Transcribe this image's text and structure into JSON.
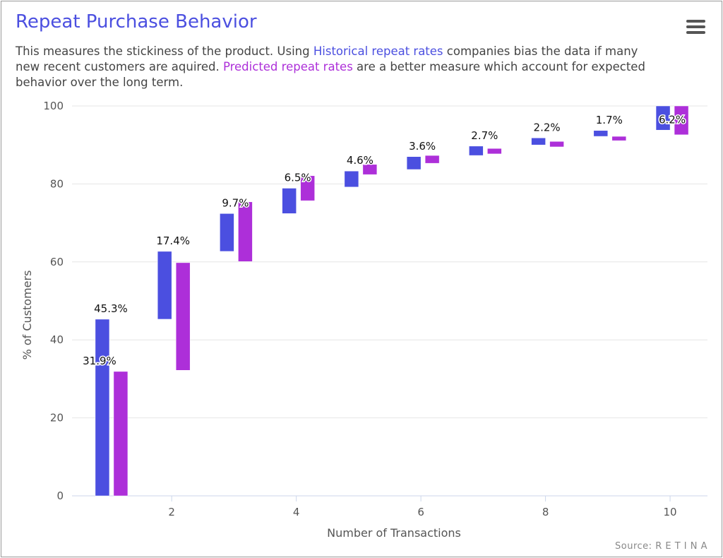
{
  "header": {
    "title": "Repeat Purchase Behavior",
    "desc_1": "This measures the stickiness of the product. Using ",
    "desc_hist": "Historical repeat rates",
    "desc_2": " companies bias the data if many new recent customers are aquired. ",
    "desc_pred": "Predicted repeat rates",
    "desc_3": " are a better measure which account for expected behavior over the long term.",
    "menu_icon": "hamburger-menu-icon"
  },
  "source": "Source: R E T I N A",
  "chart_data": {
    "type": "waterfall-range-bar",
    "xlabel": "Number of Transactions",
    "ylabel": "% of Customers",
    "xlim": [
      0.4,
      10.6
    ],
    "ylim": [
      0,
      100
    ],
    "xticks": [
      2,
      4,
      6,
      8,
      10
    ],
    "yticks": [
      0,
      20,
      40,
      60,
      80,
      100
    ],
    "grid": "horizontal",
    "colors": {
      "historical": "#4b4fe0",
      "predicted": "#ad2fd9"
    },
    "categories": [
      1,
      2,
      3,
      4,
      5,
      6,
      7,
      8,
      9,
      10
    ],
    "series": [
      {
        "key": "historical",
        "ranges": [
          [
            0,
            45.3
          ],
          [
            45.3,
            62.7
          ],
          [
            62.7,
            72.4
          ],
          [
            72.4,
            78.9
          ],
          [
            79.2,
            83.3
          ],
          [
            83.7,
            87.0
          ],
          [
            87.3,
            89.7
          ],
          [
            90.0,
            91.8
          ],
          [
            92.2,
            93.7
          ],
          [
            93.8,
            100
          ]
        ]
      },
      {
        "key": "predicted",
        "ranges": [
          [
            0,
            31.9
          ],
          [
            32.2,
            59.8
          ],
          [
            60.1,
            75.4
          ],
          [
            75.7,
            82.1
          ],
          [
            82.4,
            85.0
          ],
          [
            85.3,
            87.3
          ],
          [
            87.7,
            89.1
          ],
          [
            89.5,
            90.9
          ],
          [
            91.1,
            92.2
          ],
          [
            92.6,
            100
          ]
        ]
      }
    ],
    "data_labels": [
      {
        "x": 1,
        "series": "historical",
        "text": "45.3%"
      },
      {
        "x": 1,
        "series": "predicted",
        "text": "31.9%"
      },
      {
        "x": 2,
        "series": "historical",
        "text": "17.4%"
      },
      {
        "x": 3,
        "series": "historical",
        "text": "9.7%"
      },
      {
        "x": 4,
        "series": "historical",
        "text": "6.5%"
      },
      {
        "x": 5,
        "series": "historical",
        "text": "4.6%"
      },
      {
        "x": 6,
        "series": "historical",
        "text": "3.6%"
      },
      {
        "x": 7,
        "series": "historical",
        "text": "2.7%"
      },
      {
        "x": 8,
        "series": "historical",
        "text": "2.2%"
      },
      {
        "x": 9,
        "series": "historical",
        "text": "1.7%"
      },
      {
        "x": 10,
        "series": "historical",
        "text": "6.2%"
      }
    ]
  }
}
